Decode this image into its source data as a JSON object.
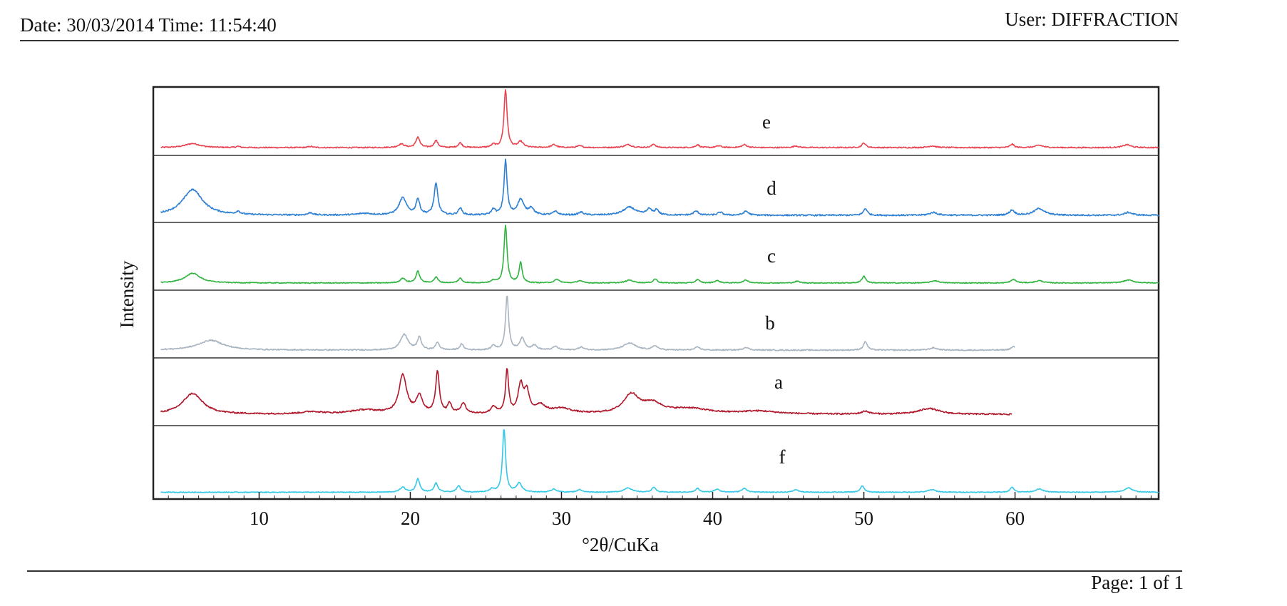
{
  "header": {
    "date_time": "Date: 30/03/2014 Time: 11:54:40",
    "user": "User: DIFFRACTION"
  },
  "footer": {
    "page": "Page: 1 of 1"
  },
  "chart_data": {
    "type": "line",
    "title": "",
    "xlabel": "°2θ/CuKa",
    "ylabel": "Intensity",
    "xlim": [
      3,
      69.5
    ],
    "xticks": [
      10,
      20,
      30,
      40,
      50,
      60
    ],
    "xtick_labels": [
      "10",
      "20",
      "30",
      "40",
      "50",
      "60"
    ],
    "grid": false,
    "series": [
      {
        "name": "e",
        "color": "#e8434f",
        "x_end": 69.5,
        "baseline": 0.06,
        "noise": 0.02,
        "peaks": [
          [
            5.6,
            0.07,
            0.6
          ],
          [
            8.6,
            0.02,
            0.15
          ],
          [
            13.4,
            0.02,
            0.2
          ],
          [
            19.4,
            0.06,
            0.25
          ],
          [
            20.5,
            0.18,
            0.15
          ],
          [
            21.7,
            0.12,
            0.15
          ],
          [
            23.3,
            0.08,
            0.15
          ],
          [
            25.5,
            0.05,
            0.15
          ],
          [
            26.3,
            1.0,
            0.12
          ],
          [
            27.3,
            0.1,
            0.2
          ],
          [
            29.5,
            0.05,
            0.2
          ],
          [
            31.2,
            0.03,
            0.2
          ],
          [
            34.4,
            0.05,
            0.3
          ],
          [
            36.1,
            0.06,
            0.15
          ],
          [
            39.0,
            0.05,
            0.15
          ],
          [
            40.4,
            0.03,
            0.2
          ],
          [
            42.1,
            0.05,
            0.2
          ],
          [
            45.5,
            0.03,
            0.2
          ],
          [
            50.0,
            0.08,
            0.15
          ],
          [
            54.5,
            0.03,
            0.3
          ],
          [
            59.8,
            0.06,
            0.15
          ],
          [
            61.6,
            0.04,
            0.3
          ],
          [
            67.4,
            0.05,
            0.3
          ]
        ]
      },
      {
        "name": "d",
        "color": "#2c7fd3",
        "x_end": 69.5,
        "baseline": 0.05,
        "noise": 0.025,
        "peaks": [
          [
            5.6,
            0.45,
            0.8
          ],
          [
            8.6,
            0.05,
            0.15
          ],
          [
            13.4,
            0.04,
            0.2
          ],
          [
            17.0,
            0.03,
            0.6
          ],
          [
            19.5,
            0.3,
            0.3
          ],
          [
            20.5,
            0.27,
            0.15
          ],
          [
            21.7,
            0.55,
            0.15
          ],
          [
            23.3,
            0.12,
            0.15
          ],
          [
            25.5,
            0.1,
            0.15
          ],
          [
            26.3,
            0.95,
            0.12
          ],
          [
            27.3,
            0.27,
            0.25
          ],
          [
            28.0,
            0.12,
            0.2
          ],
          [
            29.6,
            0.06,
            0.2
          ],
          [
            31.3,
            0.05,
            0.2
          ],
          [
            34.5,
            0.14,
            0.5
          ],
          [
            35.8,
            0.1,
            0.2
          ],
          [
            36.3,
            0.09,
            0.15
          ],
          [
            38.9,
            0.07,
            0.2
          ],
          [
            40.5,
            0.05,
            0.2
          ],
          [
            42.2,
            0.07,
            0.2
          ],
          [
            50.1,
            0.12,
            0.15
          ],
          [
            54.6,
            0.05,
            0.3
          ],
          [
            59.8,
            0.09,
            0.2
          ],
          [
            61.6,
            0.12,
            0.4
          ],
          [
            67.5,
            0.05,
            0.3
          ]
        ]
      },
      {
        "name": "c",
        "color": "#2fb43f",
        "x_end": 69.5,
        "baseline": 0.05,
        "noise": 0.015,
        "peaks": [
          [
            5.6,
            0.17,
            0.6
          ],
          [
            19.5,
            0.08,
            0.2
          ],
          [
            20.5,
            0.2,
            0.15
          ],
          [
            21.7,
            0.1,
            0.15
          ],
          [
            23.3,
            0.08,
            0.15
          ],
          [
            25.5,
            0.04,
            0.15
          ],
          [
            26.3,
            1.0,
            0.12
          ],
          [
            27.3,
            0.35,
            0.12
          ],
          [
            29.7,
            0.06,
            0.2
          ],
          [
            31.2,
            0.04,
            0.2
          ],
          [
            34.5,
            0.05,
            0.3
          ],
          [
            36.2,
            0.07,
            0.15
          ],
          [
            39.0,
            0.06,
            0.15
          ],
          [
            40.3,
            0.04,
            0.2
          ],
          [
            42.2,
            0.05,
            0.2
          ],
          [
            45.6,
            0.03,
            0.2
          ],
          [
            50.0,
            0.12,
            0.15
          ],
          [
            54.7,
            0.04,
            0.3
          ],
          [
            59.9,
            0.06,
            0.2
          ],
          [
            61.6,
            0.04,
            0.3
          ],
          [
            67.5,
            0.05,
            0.4
          ]
        ]
      },
      {
        "name": "b",
        "color": "#a8b4c0",
        "x_end": 60.0,
        "baseline": 0.06,
        "noise": 0.02,
        "peaks": [
          [
            6.8,
            0.17,
            1.0
          ],
          [
            19.6,
            0.27,
            0.3
          ],
          [
            20.6,
            0.22,
            0.15
          ],
          [
            21.8,
            0.13,
            0.15
          ],
          [
            23.4,
            0.1,
            0.15
          ],
          [
            25.5,
            0.08,
            0.15
          ],
          [
            26.4,
            0.95,
            0.12
          ],
          [
            27.4,
            0.2,
            0.2
          ],
          [
            28.2,
            0.08,
            0.2
          ],
          [
            29.6,
            0.06,
            0.2
          ],
          [
            31.3,
            0.05,
            0.2
          ],
          [
            34.5,
            0.12,
            0.5
          ],
          [
            36.2,
            0.07,
            0.2
          ],
          [
            39.0,
            0.05,
            0.2
          ],
          [
            42.2,
            0.05,
            0.2
          ],
          [
            50.1,
            0.15,
            0.15
          ],
          [
            54.6,
            0.04,
            0.3
          ],
          [
            59.9,
            0.06,
            0.2
          ]
        ]
      },
      {
        "name": "a",
        "color": "#b0172a",
        "x_end": 59.8,
        "baseline": 0.12,
        "noise": 0.025,
        "peaks": [
          [
            5.6,
            0.36,
            0.8
          ],
          [
            13.5,
            0.04,
            0.8
          ],
          [
            17.0,
            0.07,
            1.2
          ],
          [
            19.5,
            0.67,
            0.3
          ],
          [
            20.6,
            0.3,
            0.25
          ],
          [
            21.8,
            0.72,
            0.15
          ],
          [
            22.6,
            0.17,
            0.15
          ],
          [
            23.5,
            0.18,
            0.2
          ],
          [
            25.5,
            0.12,
            0.2
          ],
          [
            26.4,
            0.75,
            0.12
          ],
          [
            27.3,
            0.48,
            0.2
          ],
          [
            27.7,
            0.35,
            0.2
          ],
          [
            28.6,
            0.14,
            0.4
          ],
          [
            30.0,
            0.09,
            0.8
          ],
          [
            34.6,
            0.32,
            0.6
          ],
          [
            36.0,
            0.17,
            0.8
          ],
          [
            38.5,
            0.09,
            1.5
          ],
          [
            43.0,
            0.05,
            1.5
          ],
          [
            50.1,
            0.05,
            0.3
          ],
          [
            54.3,
            0.1,
            0.8
          ]
        ]
      },
      {
        "name": "f",
        "color": "#32c8e6",
        "x_end": 69.5,
        "baseline": 0.04,
        "noise": 0.012,
        "peaks": [
          [
            19.5,
            0.08,
            0.2
          ],
          [
            20.5,
            0.21,
            0.15
          ],
          [
            21.7,
            0.14,
            0.15
          ],
          [
            23.2,
            0.1,
            0.15
          ],
          [
            25.4,
            0.05,
            0.15
          ],
          [
            26.2,
            1.0,
            0.12
          ],
          [
            27.2,
            0.14,
            0.2
          ],
          [
            29.5,
            0.05,
            0.2
          ],
          [
            31.2,
            0.04,
            0.2
          ],
          [
            34.4,
            0.07,
            0.3
          ],
          [
            36.1,
            0.08,
            0.15
          ],
          [
            39.0,
            0.06,
            0.15
          ],
          [
            40.3,
            0.05,
            0.2
          ],
          [
            42.1,
            0.06,
            0.2
          ],
          [
            45.5,
            0.04,
            0.2
          ],
          [
            49.9,
            0.1,
            0.15
          ],
          [
            54.5,
            0.04,
            0.3
          ],
          [
            59.8,
            0.08,
            0.15
          ],
          [
            61.6,
            0.05,
            0.3
          ],
          [
            67.5,
            0.07,
            0.3
          ]
        ]
      }
    ]
  }
}
